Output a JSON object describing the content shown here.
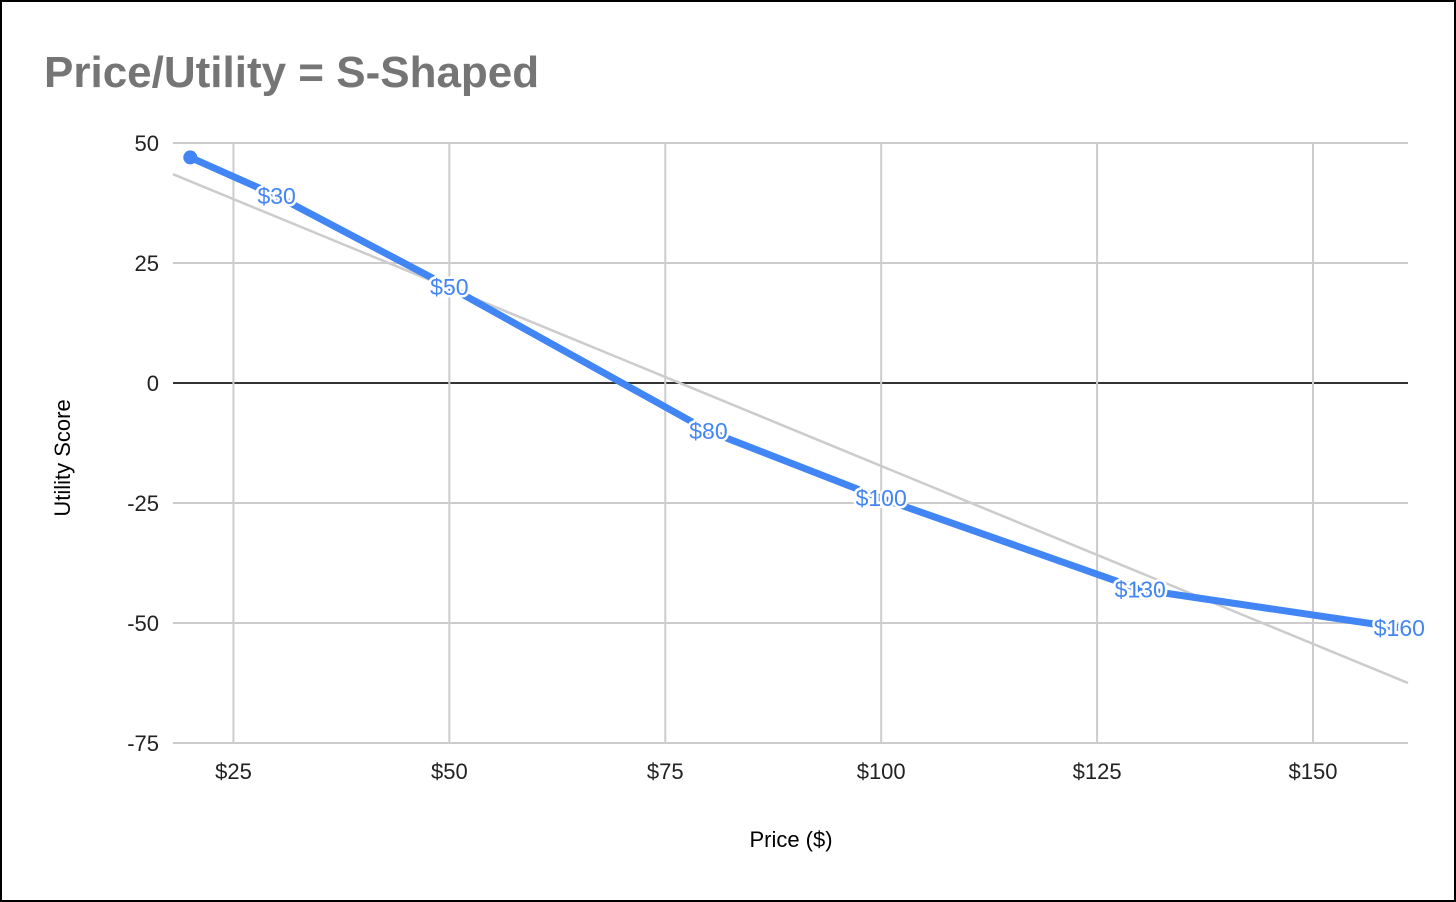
{
  "chart_data": {
    "type": "line",
    "title": "Price/Utility = S-Shaped",
    "xlabel": "Price ($)",
    "ylabel": "Utility Score",
    "xlim": [
      18,
      161
    ],
    "ylim": [
      -75,
      50
    ],
    "x_ticks": [
      {
        "value": 25,
        "label": "$25"
      },
      {
        "value": 50,
        "label": "$50"
      },
      {
        "value": 75,
        "label": "$75"
      },
      {
        "value": 100,
        "label": "$100"
      },
      {
        "value": 125,
        "label": "$125"
      },
      {
        "value": 150,
        "label": "$150"
      }
    ],
    "y_ticks": [
      {
        "value": 50,
        "label": "50"
      },
      {
        "value": 25,
        "label": "25"
      },
      {
        "value": 0,
        "label": "0"
      },
      {
        "value": -25,
        "label": "-25"
      },
      {
        "value": -50,
        "label": "-50"
      },
      {
        "value": -75,
        "label": "-75"
      }
    ],
    "grid": true,
    "series": [
      {
        "color": "#4285f4",
        "points": [
          {
            "x": 20,
            "y": 47,
            "label": ""
          },
          {
            "x": 30,
            "y": 39,
            "label": "$30"
          },
          {
            "x": 50,
            "y": 20,
            "label": "$50"
          },
          {
            "x": 80,
            "y": -10,
            "label": "$80"
          },
          {
            "x": 100,
            "y": -24,
            "label": "$100"
          },
          {
            "x": 130,
            "y": -43,
            "label": "$130"
          },
          {
            "x": 160,
            "y": -51,
            "label": "$160"
          }
        ]
      }
    ],
    "trendline": {
      "type": "linear",
      "color": "#cccccc",
      "x": [
        18,
        161
      ],
      "y": [
        43.5,
        -62.5
      ]
    },
    "zero_line_color": "#333333",
    "grid_color": "#cccccc"
  }
}
